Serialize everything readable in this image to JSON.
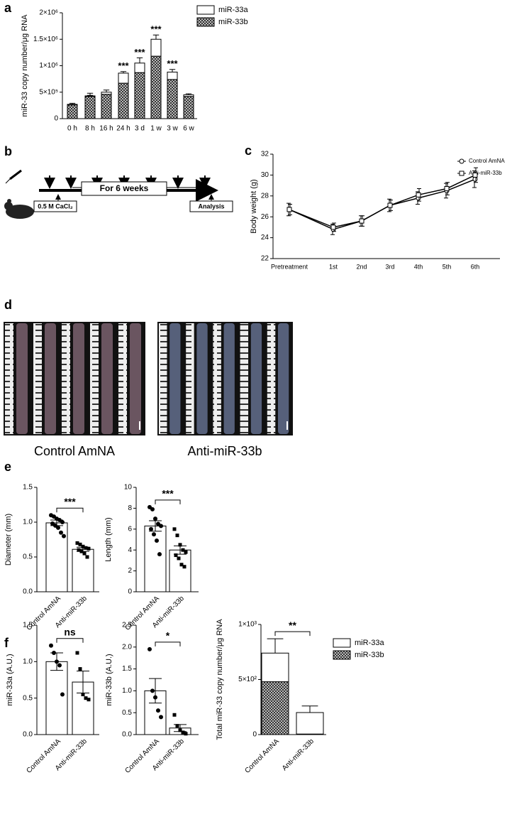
{
  "panel_labels": [
    "a",
    "b",
    "c",
    "d",
    "e",
    "f"
  ],
  "diagram": {
    "duration": "For 6 weeks",
    "start": "0.5 M CaCl₂",
    "end": "Analysis"
  },
  "images": {
    "captions": [
      "Control AmNA",
      "Anti-miR-33b"
    ]
  },
  "chart_data": [
    {
      "type": "stacked_bar",
      "y_label": "miR-33 copy number/μg RNA",
      "categories": [
        "0 h",
        "8 h",
        "16 h",
        "24 h",
        "3 d",
        "1 w",
        "3 w",
        "6 w"
      ],
      "series": [
        {
          "name": "miR-33a",
          "color": "#ffffff",
          "values": [
            10000,
            10000,
            40000,
            190000,
            180000,
            320000,
            140000,
            30000
          ],
          "errors": [
            20000,
            50000,
            40000,
            30000,
            100000,
            80000,
            50000,
            20000
          ]
        },
        {
          "name": "miR-33b",
          "color": "#4d4d4d",
          "pattern": "checker",
          "values": [
            260000,
            420000,
            460000,
            670000,
            870000,
            1180000,
            740000,
            420000
          ],
          "errors": [
            10000,
            20000,
            20000,
            40000,
            60000,
            100000,
            40000,
            10000
          ]
        }
      ],
      "significance": [
        null,
        null,
        null,
        "***",
        "***",
        "***",
        "***",
        null
      ],
      "ylim": [
        0,
        2000000
      ],
      "yticks": [
        0,
        {
          "value": 500000,
          "label": "5×10⁵"
        },
        {
          "value": 1000000,
          "label": "1×10⁶"
        },
        {
          "value": 1500000,
          "label": "1.5×10⁶"
        },
        {
          "value": 2000000,
          "label": "2×10⁶"
        }
      ]
    },
    {
      "type": "line",
      "y_label": "Body weight (g)",
      "categories": [
        "Pretreatment",
        "1st",
        "2nd",
        "3rd",
        "4th",
        "5th",
        "6th"
      ],
      "series": [
        {
          "name": "Control AmNA",
          "color": "#000000",
          "marker": "circle",
          "values": [
            26.7,
            24.8,
            25.6,
            27.1,
            27.8,
            28.5,
            29.6
          ],
          "errors": [
            0.6,
            0.5,
            0.5,
            0.6,
            0.6,
            0.7,
            0.8
          ]
        },
        {
          "name": "Anti-miR-33b",
          "color": "#000000",
          "marker": "square",
          "values": [
            26.7,
            25.0,
            25.6,
            27.1,
            28.1,
            28.7,
            30.0
          ],
          "errors": [
            0.5,
            0.4,
            0.5,
            0.5,
            0.6,
            0.6,
            0.7
          ]
        }
      ],
      "ylim": [
        22,
        32
      ],
      "yticks": [
        22,
        24,
        26,
        28,
        30,
        32
      ]
    },
    {
      "type": "bar",
      "y_label": "Diameter (mm)",
      "categories": [
        "Control AmNA",
        "Anti-miR-33b"
      ],
      "values": [
        0.99,
        0.61
      ],
      "errors": [
        0.04,
        0.03
      ],
      "points": [
        [
          1.1,
          1.08,
          1.05,
          1.03,
          1.0,
          0.98,
          0.95,
          0.92,
          0.85,
          0.8
        ],
        [
          0.7,
          0.68,
          0.65,
          0.63,
          0.62,
          0.6,
          0.58,
          0.55,
          0.5
        ]
      ],
      "significance": "***",
      "ylim": [
        0,
        1.5
      ],
      "yticks": [
        {
          "value": 0,
          "label": "0.0"
        },
        0.5,
        {
          "value": 1,
          "label": "1.0"
        },
        1.5
      ]
    },
    {
      "type": "bar",
      "y_label": "Length (mm)",
      "categories": [
        "Control AmNA",
        "Anti-miR-33b"
      ],
      "values": [
        6.3,
        4.0
      ],
      "errors": [
        0.5,
        0.4
      ],
      "points": [
        [
          8.1,
          7.9,
          7.0,
          6.5,
          6.3,
          6.0,
          5.5,
          4.9,
          3.6
        ],
        [
          6.0,
          5.4,
          4.5,
          4.0,
          3.8,
          3.5,
          3.2,
          2.6,
          2.4
        ]
      ],
      "significance": "***",
      "ylim": [
        0,
        10
      ],
      "yticks": [
        0,
        2,
        4,
        6,
        8,
        10
      ]
    },
    {
      "type": "bar",
      "y_label": "miR-33a (A.U.)",
      "categories": [
        "Control AmNA",
        "Anti-miR-33b"
      ],
      "values": [
        1.0,
        0.72
      ],
      "errors": [
        0.12,
        0.15
      ],
      "points": [
        [
          1.22,
          1.12,
          1.0,
          0.95,
          0.55
        ],
        [
          1.12,
          0.9,
          0.55,
          0.5,
          0.48
        ]
      ],
      "significance": "ns",
      "ylim": [
        0,
        1.5
      ],
      "yticks": [
        {
          "value": 0,
          "label": "0.0"
        },
        0.5,
        {
          "value": 1,
          "label": "1.0"
        },
        1.5
      ]
    },
    {
      "type": "bar",
      "y_label": "miR-33b (A.U.)",
      "categories": [
        "Control AmNA",
        "Anti-miR-33b"
      ],
      "values": [
        1.0,
        0.15
      ],
      "errors": [
        0.28,
        0.08
      ],
      "points": [
        [
          1.95,
          1.0,
          0.85,
          0.55,
          0.4
        ],
        [
          0.45,
          0.2,
          0.1,
          0.05,
          0.02
        ]
      ],
      "significance": "*",
      "ylim": [
        0,
        2.5
      ],
      "yticks": [
        {
          "value": 0,
          "label": "0.0"
        },
        0.5,
        {
          "value": 1,
          "label": "1.0"
        },
        1.5,
        {
          "value": 2,
          "label": "2.0"
        },
        2.5
      ]
    },
    {
      "type": "stacked_bar",
      "y_label": "Total miR-33 copy number/μg RNA",
      "categories": [
        "Control AmNA",
        "Anti-miR-33b"
      ],
      "series": [
        {
          "name": "miR-33a",
          "color": "#ffffff",
          "values": [
            260,
            195
          ],
          "errors": [
            130,
            60
          ]
        },
        {
          "name": "miR-33b",
          "color": "#4d4d4d",
          "pattern": "checker",
          "values": [
            480,
            5
          ],
          "errors": [
            130,
            5
          ]
        }
      ],
      "significance": "**",
      "ylim": [
        0,
        1000
      ],
      "yticks": [
        0,
        {
          "value": 500,
          "label": "5×10²"
        },
        {
          "value": 1000,
          "label": "1×10³"
        }
      ]
    }
  ]
}
